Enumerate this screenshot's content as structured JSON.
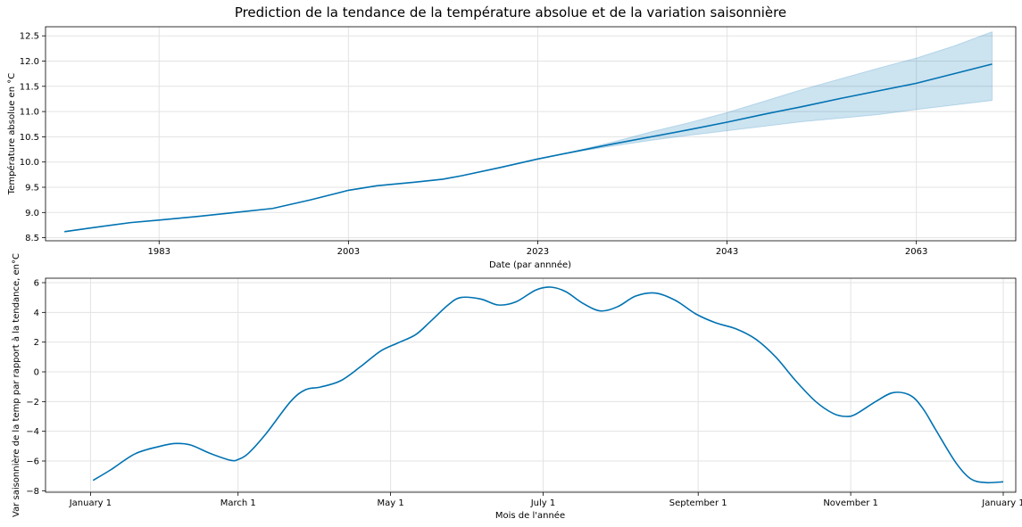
{
  "title": "Prediction de la tendance de la température absolue et de la variation saisonnière",
  "colors": {
    "line": "#0072b2",
    "band": "#0072b2"
  },
  "chart_data": [
    {
      "type": "line",
      "id": "trend",
      "xlabel": "Date (par annnée)",
      "ylabel": "Température absolue en °C",
      "x_axis": "year",
      "xlim": [
        1971.0,
        2073.5
      ],
      "ylim": [
        8.44,
        12.68
      ],
      "x_ticks": [
        1983,
        2003,
        2023,
        2043,
        2063
      ],
      "x_tick_labels": [
        "1983",
        "2003",
        "2023",
        "2043",
        "2063"
      ],
      "y_ticks": [
        8.5,
        9.0,
        9.5,
        10.0,
        10.5,
        11.0,
        11.5,
        12.0,
        12.5
      ],
      "y_tick_labels": [
        "8.5",
        "9.0",
        "9.5",
        "10.0",
        "10.5",
        "11.0",
        "11.5",
        "12.0",
        "12.5"
      ],
      "grid": true,
      "series": [
        {
          "x": [
            1973,
            1976,
            1980,
            1983,
            1987,
            1991,
            1995,
            1999,
            2003,
            2006,
            2010,
            2013,
            2015,
            2019,
            2023,
            2027,
            2031,
            2035,
            2039,
            2043,
            2047,
            2051,
            2055,
            2059,
            2063,
            2067,
            2071
          ],
          "y": [
            8.62,
            8.7,
            8.8,
            8.85,
            8.92,
            9.0,
            9.08,
            9.25,
            9.44,
            9.53,
            9.6,
            9.66,
            9.73,
            9.89,
            10.06,
            10.21,
            10.36,
            10.5,
            10.64,
            10.79,
            10.95,
            11.1,
            11.26,
            11.41,
            11.56,
            11.75,
            11.94
          ],
          "lower": [
            8.62,
            8.7,
            8.8,
            8.85,
            8.92,
            9.0,
            9.08,
            9.25,
            9.44,
            9.53,
            9.6,
            9.66,
            9.73,
            9.89,
            10.06,
            10.2,
            10.32,
            10.43,
            10.53,
            10.62,
            10.71,
            10.8,
            10.87,
            10.94,
            11.04,
            11.13,
            11.22
          ],
          "upper": [
            8.62,
            8.7,
            8.8,
            8.85,
            8.92,
            9.0,
            9.08,
            9.25,
            9.44,
            9.53,
            9.6,
            9.66,
            9.73,
            9.89,
            10.06,
            10.22,
            10.4,
            10.6,
            10.78,
            10.98,
            11.21,
            11.44,
            11.65,
            11.86,
            12.06,
            12.3,
            12.58
          ]
        }
      ]
    },
    {
      "type": "line",
      "id": "seasonality",
      "xlabel": "Mois de l'année",
      "ylabel": "Var saisonnière de la temp par rapport à la tendance, en°C",
      "x_axis": "day_of_year",
      "xlim": [
        -18,
        370
      ],
      "ylim": [
        -8.1,
        6.3
      ],
      "x_ticks": [
        0,
        59,
        120,
        181,
        243,
        304,
        365
      ],
      "x_tick_labels": [
        "January 1",
        "March 1",
        "May 1",
        "July 1",
        "September 1",
        "November 1",
        "January 1"
      ],
      "y_ticks": [
        -8,
        -6,
        -4,
        -2,
        0,
        2,
        4,
        6
      ],
      "y_tick_labels": [
        "−8",
        "−6",
        "−4",
        "−2",
        "0",
        "2",
        "4",
        "6"
      ],
      "grid": true,
      "series": [
        {
          "x": [
            1,
            8,
            18,
            28,
            34,
            40,
            48,
            56,
            59,
            63,
            70,
            80,
            86,
            92,
            100,
            108,
            116,
            123,
            130,
            136,
            143,
            148,
            156,
            163,
            170,
            178,
            184,
            190,
            197,
            204,
            211,
            218,
            226,
            234,
            242,
            250,
            258,
            266,
            274,
            282,
            290,
            297,
            302,
            306,
            314,
            321,
            328,
            333,
            338,
            346,
            352,
            358,
            365
          ],
          "y": [
            -7.3,
            -6.6,
            -5.5,
            -5.0,
            -4.82,
            -4.92,
            -5.5,
            -5.95,
            -5.9,
            -5.5,
            -4.2,
            -2.0,
            -1.2,
            -1.02,
            -0.6,
            0.35,
            1.4,
            1.95,
            2.5,
            3.4,
            4.5,
            5.0,
            4.9,
            4.5,
            4.7,
            5.5,
            5.7,
            5.4,
            4.6,
            4.1,
            4.4,
            5.1,
            5.3,
            4.8,
            3.9,
            3.3,
            2.9,
            2.2,
            1.0,
            -0.6,
            -2.0,
            -2.8,
            -3.0,
            -2.85,
            -2.0,
            -1.4,
            -1.6,
            -2.5,
            -3.9,
            -6.1,
            -7.2,
            -7.45,
            -7.4
          ]
        }
      ]
    }
  ]
}
